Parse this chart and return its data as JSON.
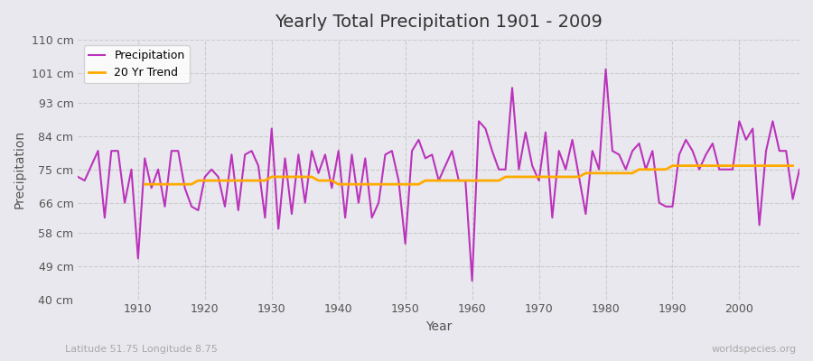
{
  "title": "Yearly Total Precipitation 1901 - 2009",
  "xlabel": "Year",
  "ylabel": "Precipitation",
  "background_color": "#e8e8ee",
  "plot_bg_color": "#e8e8ee",
  "precip_color": "#bb33bb",
  "trend_color": "#ffaa00",
  "ylim": [
    40,
    110
  ],
  "ytick_values": [
    40,
    49,
    58,
    66,
    75,
    84,
    93,
    101,
    110
  ],
  "ytick_labels": [
    "40 cm",
    "49 cm",
    "58 cm",
    "66 cm",
    "75 cm",
    "84 cm",
    "93 cm",
    "101 cm",
    "110 cm"
  ],
  "xtick_values": [
    1910,
    1920,
    1930,
    1940,
    1950,
    1960,
    1970,
    1980,
    1990,
    2000
  ],
  "years": [
    1901,
    1902,
    1903,
    1904,
    1905,
    1906,
    1907,
    1908,
    1909,
    1910,
    1911,
    1912,
    1913,
    1914,
    1915,
    1916,
    1917,
    1918,
    1919,
    1920,
    1921,
    1922,
    1923,
    1924,
    1925,
    1926,
    1927,
    1928,
    1929,
    1930,
    1931,
    1932,
    1933,
    1934,
    1935,
    1936,
    1937,
    1938,
    1939,
    1940,
    1941,
    1942,
    1943,
    1944,
    1945,
    1946,
    1947,
    1948,
    1949,
    1950,
    1951,
    1952,
    1953,
    1954,
    1955,
    1956,
    1957,
    1958,
    1959,
    1960,
    1961,
    1962,
    1963,
    1964,
    1965,
    1966,
    1967,
    1968,
    1969,
    1970,
    1971,
    1972,
    1973,
    1974,
    1975,
    1976,
    1977,
    1978,
    1979,
    1980,
    1981,
    1982,
    1983,
    1984,
    1985,
    1986,
    1987,
    1988,
    1989,
    1990,
    1991,
    1992,
    1993,
    1994,
    1995,
    1996,
    1997,
    1998,
    1999,
    2000,
    2001,
    2002,
    2003,
    2004,
    2005,
    2006,
    2007,
    2008,
    2009
  ],
  "precip": [
    73,
    72,
    76,
    80,
    62,
    80,
    80,
    66,
    75,
    51,
    78,
    70,
    75,
    65,
    80,
    80,
    70,
    65,
    64,
    73,
    75,
    73,
    65,
    79,
    64,
    79,
    80,
    76,
    62,
    86,
    59,
    78,
    63,
    79,
    66,
    80,
    74,
    79,
    70,
    80,
    62,
    79,
    66,
    78,
    62,
    66,
    79,
    80,
    72,
    55,
    80,
    83,
    78,
    79,
    72,
    76,
    80,
    72,
    72,
    45,
    88,
    86,
    80,
    75,
    75,
    97,
    75,
    85,
    76,
    72,
    85,
    62,
    80,
    75,
    83,
    73,
    63,
    80,
    75,
    102,
    80,
    79,
    75,
    80,
    82,
    75,
    80,
    66,
    65,
    65,
    79,
    83,
    80,
    75,
    79,
    82,
    75,
    75,
    75,
    88,
    83,
    86,
    60,
    80,
    88,
    80,
    80,
    67,
    75
  ],
  "trend": [
    null,
    null,
    null,
    null,
    null,
    null,
    null,
    null,
    null,
    null,
    71,
    71,
    71,
    71,
    71,
    71,
    71,
    71,
    72,
    72,
    72,
    72,
    72,
    72,
    72,
    72,
    72,
    72,
    72,
    73,
    73,
    73,
    73,
    73,
    73,
    73,
    72,
    72,
    72,
    71,
    71,
    71,
    71,
    71,
    71,
    71,
    71,
    71,
    71,
    71,
    71,
    71,
    72,
    72,
    72,
    72,
    72,
    72,
    72,
    72,
    72,
    72,
    72,
    72,
    73,
    73,
    73,
    73,
    73,
    73,
    73,
    73,
    73,
    73,
    73,
    73,
    74,
    74,
    74,
    74,
    74,
    74,
    74,
    74,
    75,
    75,
    75,
    75,
    75,
    76,
    76,
    76,
    76,
    76,
    76,
    76,
    76,
    76,
    76,
    76,
    76,
    76,
    76,
    76,
    76,
    76,
    76,
    76,
    null
  ],
  "footnote_left": "Latitude 51.75 Longitude 8.75",
  "footnote_right": "worldspecies.org",
  "legend_labels": [
    "Precipitation",
    "20 Yr Trend"
  ],
  "grid_style": "--",
  "grid_color": "#cccccc"
}
